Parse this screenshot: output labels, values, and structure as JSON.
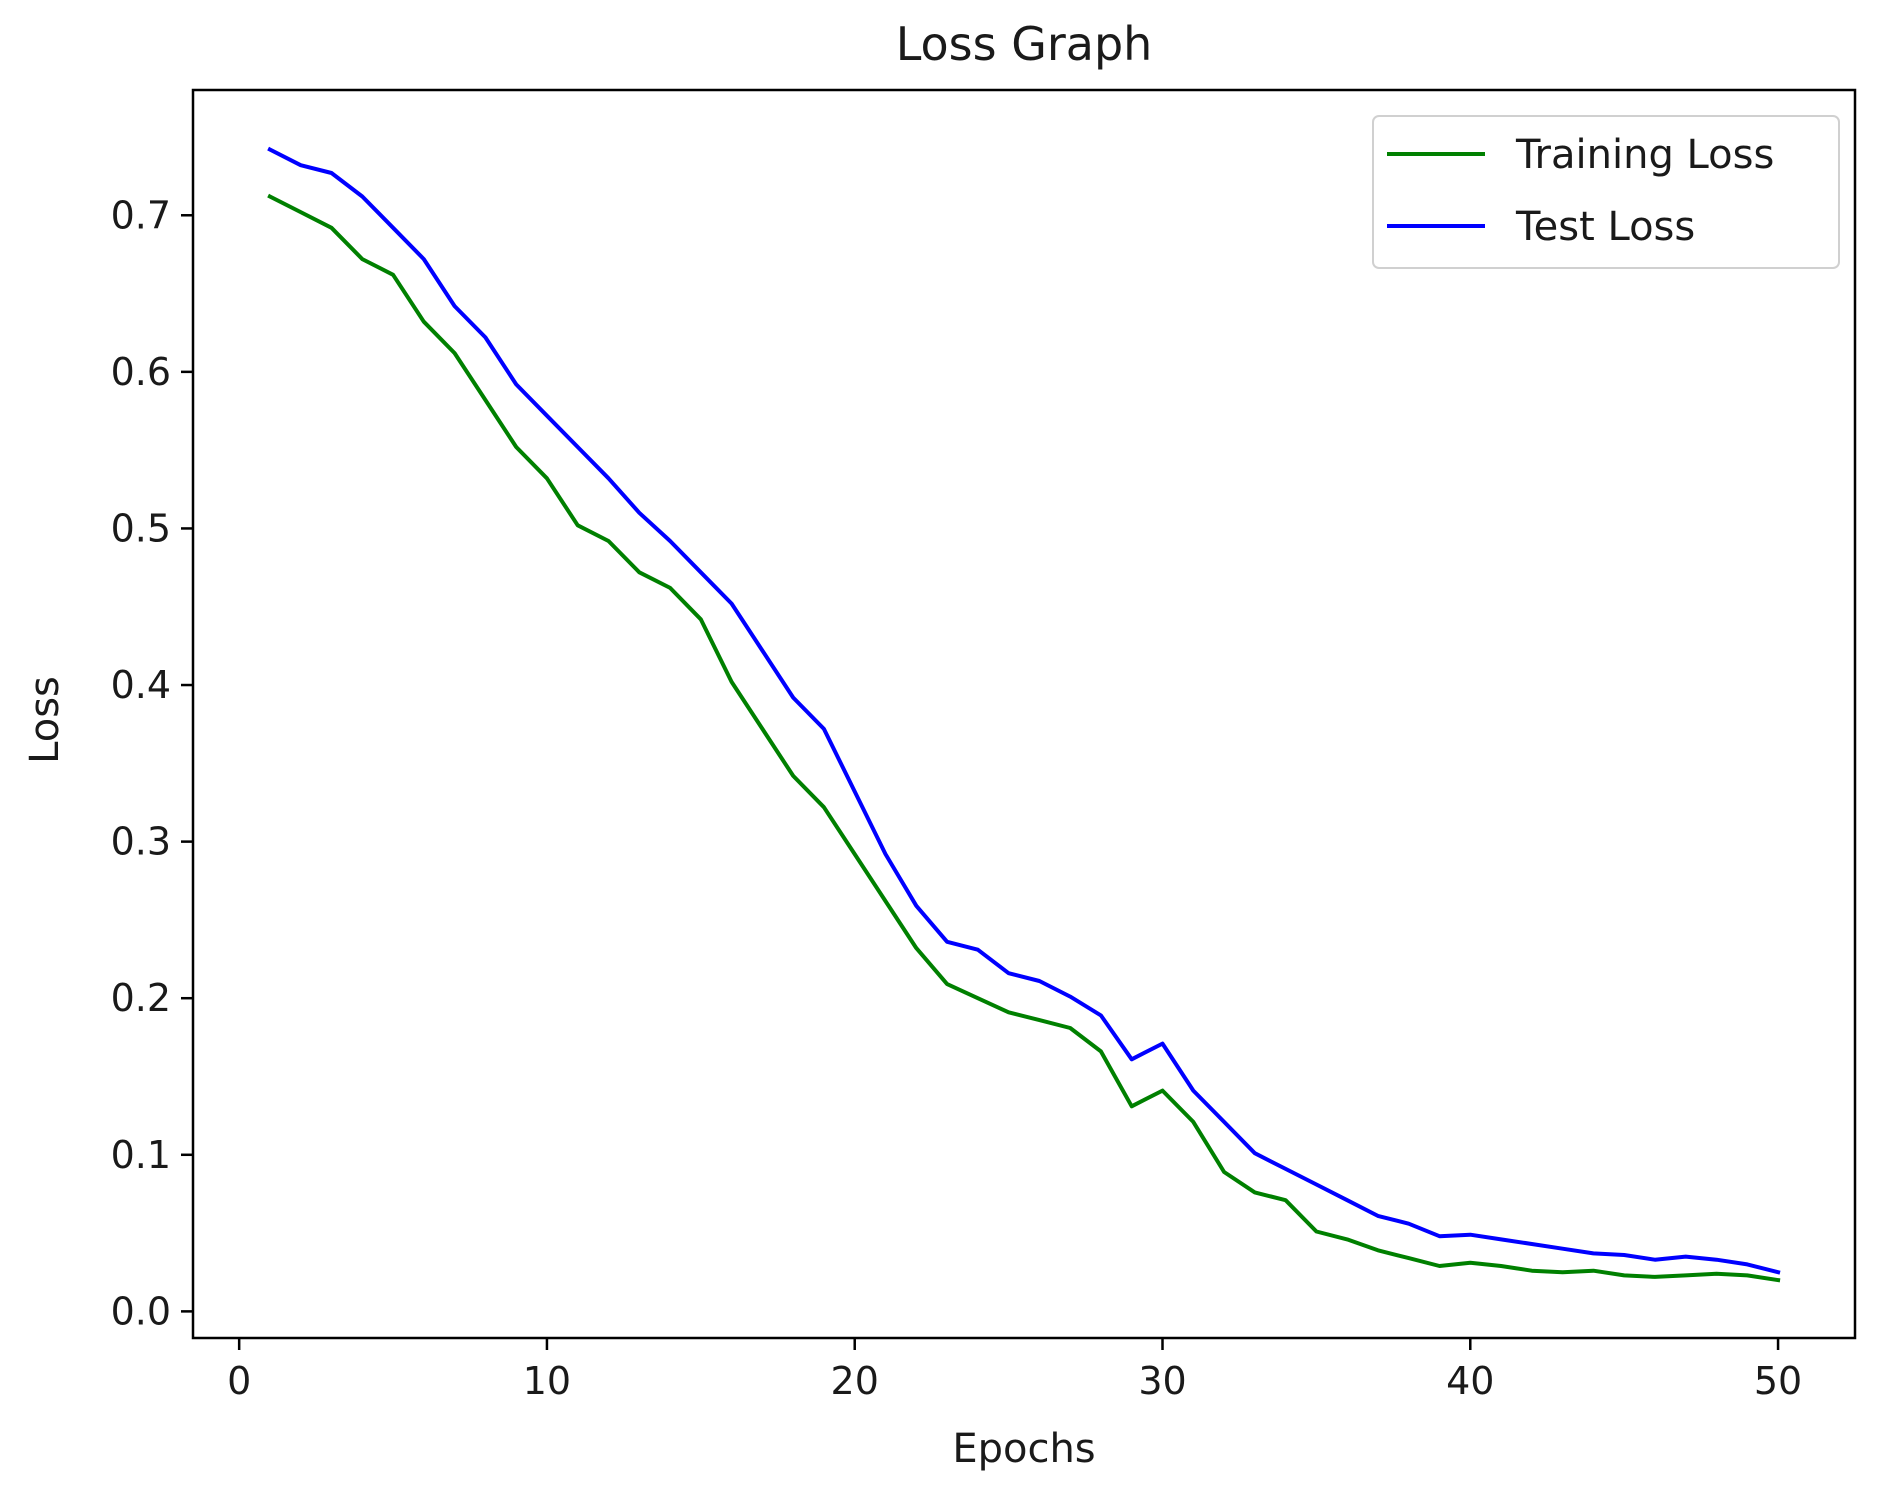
{
  "chart_data": {
    "type": "line",
    "title": "Loss Graph",
    "xlabel": "Epochs",
    "ylabel": "Loss",
    "xlim": [
      -1.5,
      52.5
    ],
    "ylim": [
      -0.017,
      0.78
    ],
    "xticks": [
      0,
      10,
      20,
      30,
      40,
      50
    ],
    "xtick_labels": [
      "0",
      "10",
      "20",
      "30",
      "40",
      "50"
    ],
    "yticks": [
      0.0,
      0.1,
      0.2,
      0.3,
      0.4,
      0.5,
      0.6,
      0.7
    ],
    "ytick_labels": [
      "0.0",
      "0.1",
      "0.2",
      "0.3",
      "0.4",
      "0.5",
      "0.6",
      "0.7"
    ],
    "grid": false,
    "legend": "top-right",
    "x": [
      1,
      2,
      3,
      4,
      5,
      6,
      7,
      8,
      9,
      10,
      11,
      12,
      13,
      14,
      15,
      16,
      17,
      18,
      19,
      20,
      21,
      22,
      23,
      24,
      25,
      26,
      27,
      28,
      29,
      30,
      31,
      32,
      33,
      34,
      35,
      36,
      37,
      38,
      39,
      40,
      41,
      42,
      43,
      44,
      45,
      46,
      47,
      48,
      49,
      50
    ],
    "series": [
      {
        "name": "Training Loss",
        "color": "#008000",
        "values": [
          0.712,
          0.702,
          0.692,
          0.672,
          0.662,
          0.632,
          0.612,
          0.582,
          0.552,
          0.532,
          0.502,
          0.492,
          0.472,
          0.462,
          0.442,
          0.402,
          0.372,
          0.342,
          0.322,
          0.292,
          0.262,
          0.232,
          0.209,
          0.2,
          0.191,
          0.186,
          0.181,
          0.166,
          0.131,
          0.141,
          0.121,
          0.089,
          0.076,
          0.071,
          0.051,
          0.046,
          0.039,
          0.034,
          0.029,
          0.031,
          0.029,
          0.026,
          0.025,
          0.026,
          0.023,
          0.022,
          0.023,
          0.024,
          0.023,
          0.02
        ]
      },
      {
        "name": "Test Loss",
        "color": "#0000ff",
        "values": [
          0.742,
          0.732,
          0.727,
          0.712,
          0.692,
          0.672,
          0.642,
          0.622,
          0.592,
          0.572,
          0.552,
          0.532,
          0.51,
          0.492,
          0.472,
          0.452,
          0.422,
          0.392,
          0.372,
          0.332,
          0.292,
          0.259,
          0.236,
          0.231,
          0.216,
          0.211,
          0.201,
          0.189,
          0.161,
          0.171,
          0.141,
          0.121,
          0.101,
          0.091,
          0.081,
          0.071,
          0.061,
          0.056,
          0.048,
          0.049,
          0.046,
          0.043,
          0.04,
          0.037,
          0.036,
          0.033,
          0.035,
          0.033,
          0.03,
          0.025
        ]
      }
    ]
  }
}
